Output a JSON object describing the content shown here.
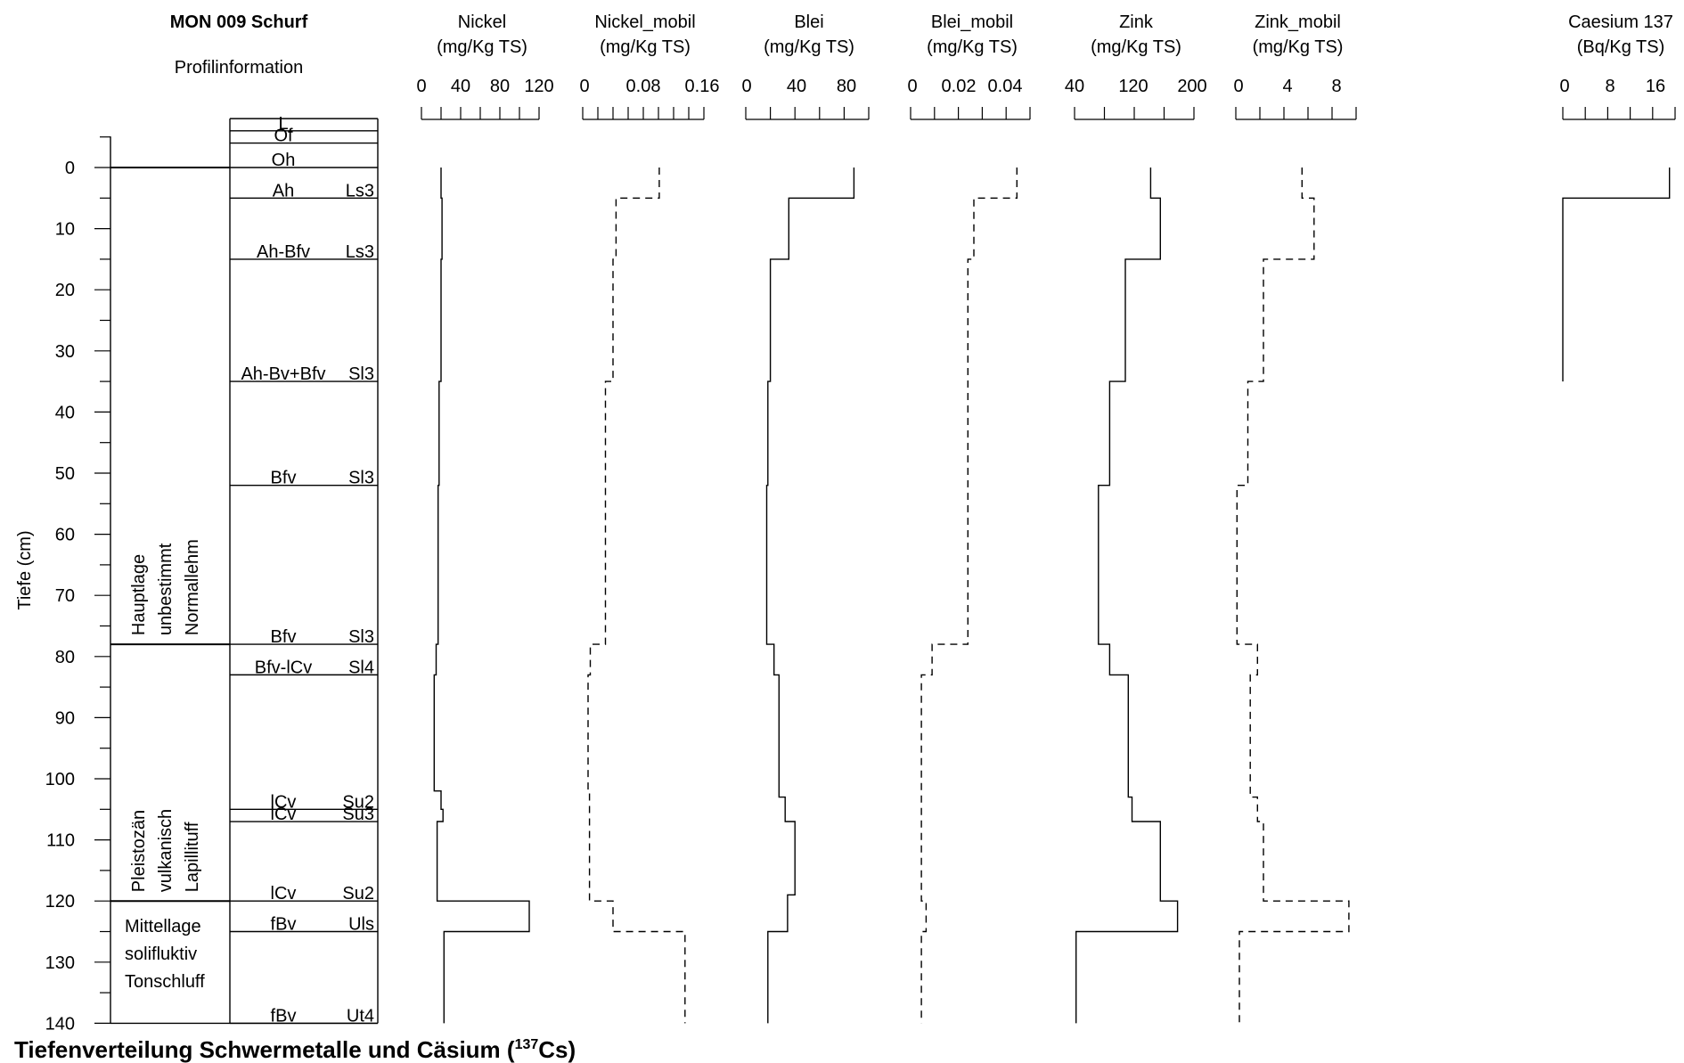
{
  "figure": {
    "profile_title": "MON 009 Schurf",
    "profile_subtitle": "Profilinformation",
    "y_axis_label": "Tiefe (cm)",
    "caption_main": "Tiefenverteilung Schwermetalle und Cäsium (",
    "caption_sup": "137",
    "caption_end": "Cs)"
  },
  "profile": {
    "depth_ticks": [
      0,
      10,
      20,
      30,
      40,
      50,
      60,
      70,
      80,
      90,
      100,
      110,
      120,
      130,
      140
    ],
    "substrate_units": [
      {
        "top": 78,
        "bottom": 0,
        "lines": [
          "Hauptlage",
          "unbestimmt",
          "Normallehm"
        ],
        "rotated": true
      },
      {
        "top": 120,
        "bottom": 78,
        "lines": [
          "Pleistozän",
          "vulkanisch",
          "Lapillituff"
        ],
        "rotated": true
      },
      {
        "top": 140,
        "bottom": 120,
        "lines": [
          "Mittellage",
          "solifluktiv",
          "Tonschluff"
        ],
        "rotated": false
      }
    ],
    "horizons": [
      {
        "top": -8,
        "bottom": -6,
        "name": "L",
        "texture": ""
      },
      {
        "top": -6,
        "bottom": -4,
        "name": "Of",
        "texture": ""
      },
      {
        "top": -4,
        "bottom": 0,
        "name": "Oh",
        "texture": ""
      },
      {
        "top": 0,
        "bottom": 5,
        "name": "Ah",
        "texture": "Ls3"
      },
      {
        "top": 5,
        "bottom": 15,
        "name": "Ah-Bfv",
        "texture": "Ls3"
      },
      {
        "top": 15,
        "bottom": 35,
        "name": "Ah-Bv+Bfv",
        "texture": "Sl3"
      },
      {
        "top": 35,
        "bottom": 52,
        "name": "Bfv",
        "texture": "Sl3"
      },
      {
        "top": 52,
        "bottom": 78,
        "name": "Bfv",
        "texture": "Sl3"
      },
      {
        "top": 78,
        "bottom": 83,
        "name": "Bfv-lCv",
        "texture": "Sl4"
      },
      {
        "top": 83,
        "bottom": 105,
        "name": "lCv",
        "texture": "Su2"
      },
      {
        "top": 105,
        "bottom": 107,
        "name": "lCv",
        "texture": "Su3"
      },
      {
        "top": 107,
        "bottom": 120,
        "name": "lCv",
        "texture": "Su2"
      },
      {
        "top": 120,
        "bottom": 125,
        "name": "fBv",
        "texture": "Uls"
      },
      {
        "top": 125,
        "bottom": 140,
        "name": "fBv",
        "texture": "Ut4"
      }
    ]
  },
  "chart_data": [
    {
      "type": "line",
      "title": "Nickel",
      "unit": "(mg/Kg TS)",
      "xlim": [
        0,
        120
      ],
      "ticks": [
        "0",
        "40",
        "80",
        "120"
      ],
      "minor_ticks": 7,
      "style": "solid",
      "layers": [
        {
          "top": 0,
          "bottom": 5,
          "value": 20
        },
        {
          "top": 5,
          "bottom": 15,
          "value": 21
        },
        {
          "top": 15,
          "bottom": 35,
          "value": 20
        },
        {
          "top": 35,
          "bottom": 52,
          "value": 18
        },
        {
          "top": 52,
          "bottom": 78,
          "value": 17
        },
        {
          "top": 78,
          "bottom": 83,
          "value": 15
        },
        {
          "top": 83,
          "bottom": 102,
          "value": 13
        },
        {
          "top": 102,
          "bottom": 105,
          "value": 20
        },
        {
          "top": 105,
          "bottom": 107,
          "value": 22
        },
        {
          "top": 107,
          "bottom": 120,
          "value": 16
        },
        {
          "top": 120,
          "bottom": 125,
          "value": 110
        },
        {
          "top": 125,
          "bottom": 140,
          "value": 23
        }
      ]
    },
    {
      "type": "line",
      "title": "Nickel_mobil",
      "unit": "(mg/Kg TS)",
      "xlim": [
        0,
        0.16
      ],
      "ticks": [
        "0",
        "0.08",
        "0.16"
      ],
      "minor_ticks": 9,
      "style": "dashed",
      "layers": [
        {
          "top": 0,
          "bottom": 5,
          "value": 0.101
        },
        {
          "top": 5,
          "bottom": 15,
          "value": 0.044
        },
        {
          "top": 15,
          "bottom": 35,
          "value": 0.04
        },
        {
          "top": 35,
          "bottom": 78,
          "value": 0.03
        },
        {
          "top": 78,
          "bottom": 83,
          "value": 0.01
        },
        {
          "top": 83,
          "bottom": 102,
          "value": 0.007
        },
        {
          "top": 102,
          "bottom": 120,
          "value": 0.009
        },
        {
          "top": 120,
          "bottom": 125,
          "value": 0.04
        },
        {
          "top": 125,
          "bottom": 140,
          "value": 0.135
        }
      ]
    },
    {
      "type": "line",
      "title": "Blei",
      "unit": "(mg/Kg TS)",
      "xlim": [
        0,
        100
      ],
      "ticks": [
        "0",
        "40",
        "80"
      ],
      "minor_ticks": 6,
      "style": "solid",
      "layers": [
        {
          "top": 0,
          "bottom": 5,
          "value": 88
        },
        {
          "top": 5,
          "bottom": 15,
          "value": 35
        },
        {
          "top": 15,
          "bottom": 35,
          "value": 20
        },
        {
          "top": 35,
          "bottom": 52,
          "value": 18
        },
        {
          "top": 52,
          "bottom": 78,
          "value": 17
        },
        {
          "top": 78,
          "bottom": 83,
          "value": 23
        },
        {
          "top": 83,
          "bottom": 103,
          "value": 27
        },
        {
          "top": 103,
          "bottom": 107,
          "value": 32
        },
        {
          "top": 107,
          "bottom": 119,
          "value": 40
        },
        {
          "top": 119,
          "bottom": 125,
          "value": 34
        },
        {
          "top": 125,
          "bottom": 140,
          "value": 18
        }
      ]
    },
    {
      "type": "line",
      "title": "Blei_mobil",
      "unit": "(mg/Kg TS)",
      "xlim": [
        0,
        0.05
      ],
      "ticks": [
        "0",
        "0.02",
        "0.04"
      ],
      "minor_ticks": 6,
      "style": "dashed",
      "layers": [
        {
          "top": 0,
          "bottom": 5,
          "value": 0.0445
        },
        {
          "top": 5,
          "bottom": 15,
          "value": 0.0265
        },
        {
          "top": 15,
          "bottom": 78,
          "value": 0.024
        },
        {
          "top": 78,
          "bottom": 83,
          "value": 0.009
        },
        {
          "top": 83,
          "bottom": 120,
          "value": 0.0045
        },
        {
          "top": 120,
          "bottom": 125,
          "value": 0.0065
        },
        {
          "top": 125,
          "bottom": 140,
          "value": 0.0045
        }
      ]
    },
    {
      "type": "line",
      "title": "Zink",
      "unit": "(mg/Kg TS)",
      "xlim": [
        40,
        200
      ],
      "ticks": [
        "40",
        "120",
        "200"
      ],
      "minor_ticks": 5,
      "style": "solid",
      "layers": [
        {
          "top": 0,
          "bottom": 5,
          "value": 142
        },
        {
          "top": 5,
          "bottom": 15,
          "value": 155
        },
        {
          "top": 15,
          "bottom": 35,
          "value": 108
        },
        {
          "top": 35,
          "bottom": 52,
          "value": 87
        },
        {
          "top": 52,
          "bottom": 78,
          "value": 72
        },
        {
          "top": 78,
          "bottom": 83,
          "value": 87
        },
        {
          "top": 83,
          "bottom": 103,
          "value": 112
        },
        {
          "top": 103,
          "bottom": 107,
          "value": 117
        },
        {
          "top": 107,
          "bottom": 120,
          "value": 155
        },
        {
          "top": 120,
          "bottom": 125,
          "value": 178
        },
        {
          "top": 125,
          "bottom": 140,
          "value": 42
        }
      ]
    },
    {
      "type": "line",
      "title": "Zink_mobil",
      "unit": "(mg/Kg TS)",
      "xlim": [
        0,
        10
      ],
      "ticks": [
        "0",
        "4",
        "8"
      ],
      "minor_ticks": 6,
      "style": "dashed",
      "layers": [
        {
          "top": 0,
          "bottom": 5,
          "value": 5.5
        },
        {
          "top": 5,
          "bottom": 15,
          "value": 6.5
        },
        {
          "top": 15,
          "bottom": 35,
          "value": 2.3
        },
        {
          "top": 35,
          "bottom": 52,
          "value": 1.0
        },
        {
          "top": 52,
          "bottom": 78,
          "value": 0.1
        },
        {
          "top": 78,
          "bottom": 83,
          "value": 1.8
        },
        {
          "top": 83,
          "bottom": 103,
          "value": 1.2
        },
        {
          "top": 103,
          "bottom": 107,
          "value": 1.8
        },
        {
          "top": 107,
          "bottom": 120,
          "value": 2.3
        },
        {
          "top": 120,
          "bottom": 125,
          "value": 9.4
        },
        {
          "top": 125,
          "bottom": 140,
          "value": 0.3
        }
      ]
    },
    {
      "type": "line",
      "title": "Caesium 137",
      "unit": "(Bq/Kg TS)",
      "xlim": [
        0,
        20
      ],
      "ticks": [
        "0",
        "8",
        "16"
      ],
      "minor_ticks": 6,
      "style": "solid",
      "layers": [
        {
          "top": 0,
          "bottom": 5,
          "value": 19
        },
        {
          "top": 5,
          "bottom": 35,
          "value": 0
        }
      ]
    }
  ]
}
